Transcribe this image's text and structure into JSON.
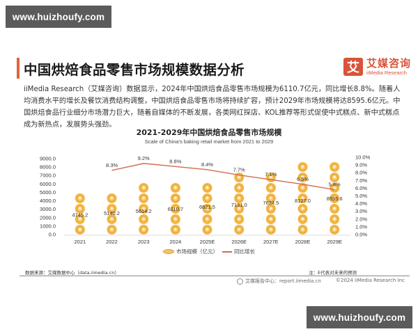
{
  "watermark": {
    "top": "www.huizhoufy.com",
    "bottom": "www.huizhoufy.com"
  },
  "header": {
    "title": "中国烘焙食品零售市场规模数据分析",
    "logo_mark": "艾",
    "logo_cn": "艾媒咨询",
    "logo_en": "iiMedia Research"
  },
  "description": "iiMedia Research（艾媒咨询）数据显示，2024年中国烘焙食品零售市场规模为6110.7亿元，同比增长8.8%。随着人均消费水平的增长及餐饮消费结构调整，中国烘焙食品零售市场将持续扩容，预计2029年市场规模将达8595.6亿元。中国烘焙食品行业细分市场潜力巨大，随着自媒体的不断发展，各类网红探店、KOL推荐等形式促使中式糕点、新中式糕点成为新热点，发展势头强劲。",
  "chart_data": {
    "type": "bar",
    "title": "2021-2029年中国烘焙食品零售市场规模",
    "subtitle": "Scale of China's baking retail market from 2021 to 2029",
    "categories": [
      "2021",
      "2022",
      "2023",
      "2024",
      "2025E",
      "2026E",
      "2027E",
      "2028E",
      "2029E"
    ],
    "series": [
      {
        "name": "市场规模（亿元）",
        "type": "bar",
        "axis": "left",
        "values": [
          4745.2,
          5140.2,
          5614.2,
          6110.7,
          6621.5,
          7131.0,
          7634.5,
          8127.0,
          8595.6
        ],
        "labels": [
          "4745.2",
          "5140.2",
          "5614.2",
          "6110.7",
          "6621.5",
          "7131.0",
          "7634.5",
          "8127.0",
          "8595.6"
        ]
      },
      {
        "name": "同比增长",
        "type": "line",
        "axis": "right",
        "values": [
          null,
          8.3,
          9.2,
          8.8,
          8.4,
          7.7,
          7.1,
          6.5,
          5.8
        ],
        "labels": [
          "",
          "8.3%",
          "9.2%",
          "8.8%",
          "8.4%",
          "7.7%",
          "7.1%",
          "6.5%",
          "5.8%"
        ]
      }
    ],
    "y_left": {
      "ticks": [
        "0.0",
        "1000.0",
        "2000.0",
        "3000.0",
        "4000.0",
        "5000.0",
        "6000.0",
        "7000.0",
        "8000.0",
        "9000.0"
      ],
      "ylim": [
        0,
        9000
      ]
    },
    "y_right": {
      "ticks": [
        "0.0%",
        "1.0%",
        "2.0%",
        "3.0%",
        "4.0%",
        "5.0%",
        "6.0%",
        "7.0%",
        "8.0%",
        "9.0%",
        "10.0%"
      ],
      "ylim": [
        0,
        10
      ]
    },
    "grid": false,
    "legend_position": "bottom",
    "colors": {
      "bar": "#f3b540",
      "line": "#d46a4f"
    }
  },
  "legend": {
    "bar_label": "市场规模（亿元）",
    "line_label": "同比增长"
  },
  "footer": {
    "source": "数据来源：艾媒数据中心（data.iimedia.cn）",
    "note": "注：E代表对未来的预测",
    "report_center": "艾媒报告中心：report.iimedia.cn",
    "copyright": "©2024 iiMedia Research Inc"
  }
}
